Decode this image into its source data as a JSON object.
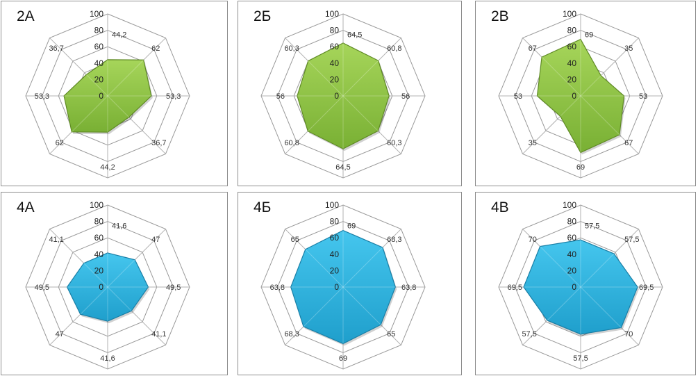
{
  "chart_data": [
    {
      "type": "radar",
      "title": "2А",
      "color": "green",
      "values": [
        44.2,
        62,
        53.3,
        36.7,
        44.2,
        62,
        53.3,
        36.7
      ],
      "labels": [
        "44,2",
        "62",
        "53,3",
        "36,7",
        "44,2",
        "62",
        "53,3",
        "36,7"
      ],
      "ticks": [
        "0",
        "20",
        "40",
        "60",
        "80",
        "100"
      ],
      "rmax": 100
    },
    {
      "type": "radar",
      "title": "2Б",
      "color": "green",
      "values": [
        64.5,
        60.8,
        56,
        60.3,
        64.5,
        60.8,
        56,
        60.3
      ],
      "labels": [
        "64,5",
        "60,8",
        "56",
        "60,3",
        "64,5",
        "60,8",
        "56",
        "60,3"
      ],
      "ticks": [
        "0",
        "20",
        "40",
        "60",
        "80",
        "100"
      ],
      "rmax": 100
    },
    {
      "type": "radar",
      "title": "2В",
      "color": "green",
      "values": [
        69,
        35,
        53,
        67,
        69,
        35,
        53,
        67
      ],
      "labels": [
        "69",
        "35",
        "53",
        "67",
        "69",
        "35",
        "53",
        "67"
      ],
      "ticks": [
        "0",
        "20",
        "40",
        "60",
        "80",
        "100"
      ],
      "rmax": 100
    },
    {
      "type": "radar",
      "title": "4А",
      "color": "blue",
      "values": [
        41.6,
        47,
        49.5,
        41.1,
        41.6,
        47,
        49.5,
        41.1
      ],
      "labels": [
        "41,6",
        "47",
        "49,5",
        "41,1",
        "41,6",
        "47",
        "49,5",
        "41,1"
      ],
      "ticks": [
        "0",
        "20",
        "40",
        "60",
        "80",
        "100"
      ],
      "rmax": 100
    },
    {
      "type": "radar",
      "title": "4Б",
      "color": "blue",
      "values": [
        69,
        68.3,
        63.8,
        65,
        69,
        68.3,
        63.8,
        65
      ],
      "labels": [
        "69",
        "68,3",
        "63,8",
        "65",
        "69",
        "68,3",
        "63,8",
        "65"
      ],
      "ticks": [
        "0",
        "20",
        "40",
        "60",
        "80",
        "100"
      ],
      "rmax": 100
    },
    {
      "type": "radar",
      "title": "4В",
      "color": "blue",
      "values": [
        57.5,
        57.5,
        69.5,
        70,
        57.5,
        57.5,
        69.5,
        70
      ],
      "labels": [
        "57,5",
        "57,5",
        "69,5",
        "70",
        "57,5",
        "57,5",
        "69,5",
        "70"
      ],
      "ticks": [
        "0",
        "20",
        "40",
        "60",
        "80",
        "100"
      ],
      "rmax": 100
    }
  ],
  "colors": {
    "green_fill": "#8dc63f",
    "green_edge": "#5f8a25",
    "blue_fill": "#29b2de",
    "blue_edge": "#1a7fa6",
    "grid": "#9a9a9a",
    "axis": "#b0b0b0",
    "label": "#333333"
  }
}
